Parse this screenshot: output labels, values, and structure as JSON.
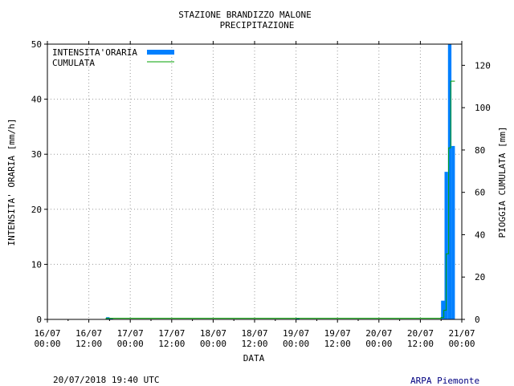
{
  "chart_data": {
    "type": "bar",
    "title": [
      "STAZIONE BRANDIZZO MALONE",
      "PRECIPITAZIONE"
    ],
    "xlabel": "DATA",
    "ylabel_left": "INTENSITA' ORARIA [mm/h]",
    "ylabel_right": "PIOGGIA CUMULATA [mm]",
    "x_tick_labels": [
      [
        "16/07",
        "00:00"
      ],
      [
        "16/07",
        "12:00"
      ],
      [
        "17/07",
        "00:00"
      ],
      [
        "17/07",
        "12:00"
      ],
      [
        "18/07",
        "00:00"
      ],
      [
        "18/07",
        "12:00"
      ],
      [
        "19/07",
        "00:00"
      ],
      [
        "19/07",
        "12:00"
      ],
      [
        "20/07",
        "00:00"
      ],
      [
        "20/07",
        "12:00"
      ],
      [
        "21/07",
        "00:00"
      ]
    ],
    "xlim_hours": [
      0,
      120
    ],
    "ylim_left": [
      0,
      50
    ],
    "yticks_left": [
      0,
      10,
      20,
      30,
      40,
      50
    ],
    "ylim_right": [
      0,
      130
    ],
    "yticks_right": [
      0,
      20,
      40,
      60,
      80,
      100,
      120
    ],
    "grid": true,
    "legend_position": "top-left",
    "series": [
      {
        "name": "INTENSITA'ORARIA",
        "color": "#0080ff",
        "points_hours_mm_h": [
          [
            17,
            0.4
          ],
          [
            18,
            0.2
          ],
          [
            72,
            0.2
          ],
          [
            114,
            3.4
          ],
          [
            115,
            26.8
          ],
          [
            116,
            50
          ],
          [
            117,
            31.5
          ]
        ]
      },
      {
        "name": "CUMULATA",
        "color": "#00a000",
        "steps_hours_mm": [
          [
            0,
            0
          ],
          [
            17,
            0.5
          ],
          [
            114,
            0.9
          ],
          [
            114.8,
            4.3
          ],
          [
            115.5,
            31
          ],
          [
            116.2,
            81
          ],
          [
            116.8,
            112.5
          ],
          [
            118,
            112.5
          ]
        ]
      }
    ]
  },
  "footer": {
    "timestamp": "20/07/2018 19:40 UTC",
    "source": "ARPA Piemonte"
  }
}
